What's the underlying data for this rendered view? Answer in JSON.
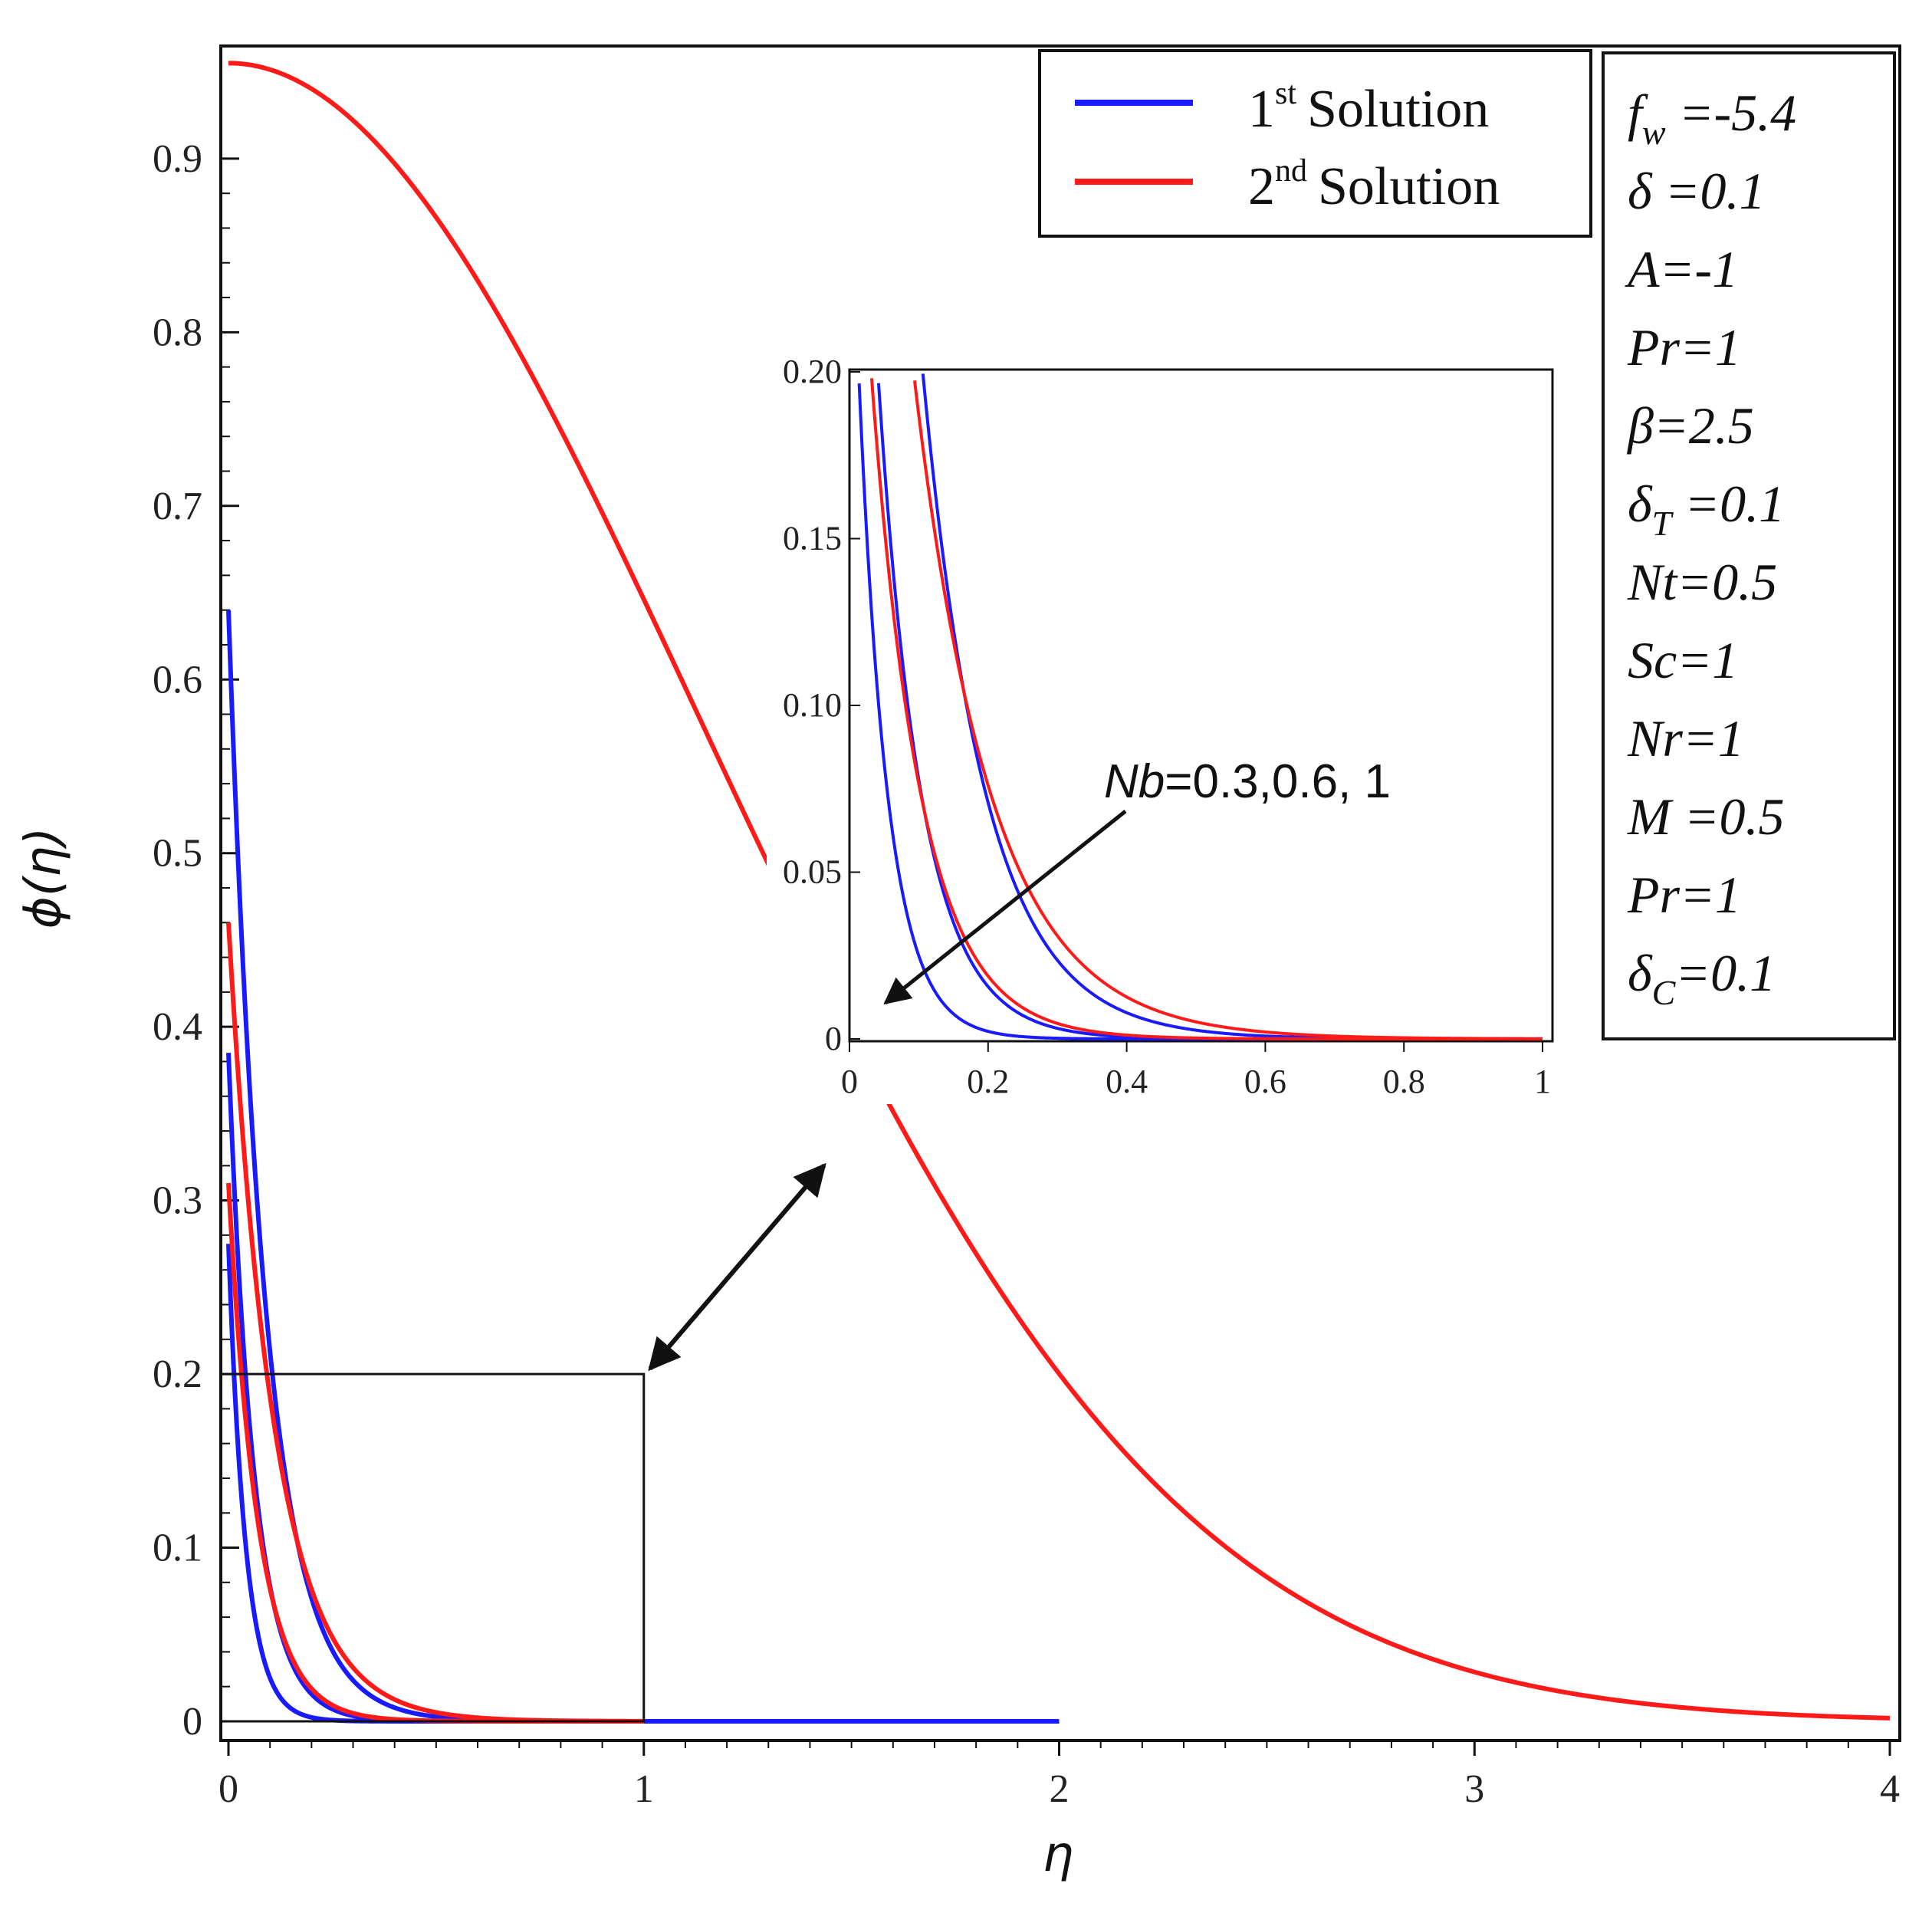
{
  "colors": {
    "first": "#1a1aff",
    "second": "#ff1a1a",
    "axis": "#111111"
  },
  "chart_data": {
    "type": "line",
    "xlabel": "η",
    "ylabel": "ϕ(η)",
    "xlim": [
      0,
      4
    ],
    "ylim": [
      0,
      0.96
    ],
    "x_ticks": [
      "0",
      "1",
      "2",
      "3",
      "4"
    ],
    "y_ticks": [
      "0",
      "0.1",
      "0.2",
      "0.3",
      "0.4",
      "0.5",
      "0.6",
      "0.7",
      "0.8",
      "0.9"
    ],
    "legend": {
      "first": {
        "base": "1",
        "sup": "st",
        "label": "Solution"
      },
      "second": {
        "base": "2",
        "sup": "nd",
        "label": "Solution"
      }
    },
    "series": [
      {
        "name": "1st Solution, Nb=0.3",
        "solution": "first",
        "x_end": 2,
        "y0": 0.64,
        "decay": 11,
        "shape": "exp"
      },
      {
        "name": "1st Solution, Nb=0.6",
        "solution": "first",
        "x_end": 2,
        "y0": 0.385,
        "decay": 16,
        "shape": "exp"
      },
      {
        "name": "1st Solution, Nb=1",
        "solution": "first",
        "x_end": 2,
        "y0": 0.275,
        "decay": 24,
        "shape": "exp"
      },
      {
        "name": "2nd Solution, Nb=0.3",
        "solution": "second",
        "x_end": 4,
        "y0": 0.955,
        "scale": 1.6,
        "shape": "bell"
      },
      {
        "name": "2nd Solution, Nb=0.6",
        "solution": "second",
        "x_end": 1,
        "y0": 0.46,
        "decay": 9,
        "shape": "exp"
      },
      {
        "name": "2nd Solution, Nb=1",
        "solution": "second",
        "x_end": 1,
        "y0": 0.31,
        "decay": 14,
        "shape": "exp"
      }
    ],
    "zoom_box": {
      "x": [
        0,
        1
      ],
      "y": [
        0,
        0.2
      ]
    },
    "inset": {
      "xlim": [
        0,
        1
      ],
      "ylim": [
        0,
        0.2
      ],
      "x_ticks": [
        "0",
        "0.2",
        "0.4",
        "0.6",
        "0.8",
        "1"
      ],
      "y_ticks": [
        "0",
        "0.05",
        "0.10",
        "0.15",
        "0.20"
      ],
      "annotation": {
        "italic": "Nb",
        "rest": "=0.3,0.6, 1"
      }
    },
    "parameters": [
      {
        "sym": "f",
        "sub": "w",
        "val": " =-5.4"
      },
      {
        "sym": "δ",
        "sub": "",
        "val": " =0.1"
      },
      {
        "sym": "A",
        "sub": "",
        "val": "=-1"
      },
      {
        "sym": "Pr",
        "sub": "",
        "val": "=1"
      },
      {
        "sym": "β",
        "sub": "",
        "val": "=2.5"
      },
      {
        "sym": "δ",
        "sub": "T",
        "val": " =0.1"
      },
      {
        "sym": "Nt",
        "sub": "",
        "val": "=0.5"
      },
      {
        "sym": "Sc",
        "sub": "",
        "val": "=1"
      },
      {
        "sym": "Nr",
        "sub": "",
        "val": "=1"
      },
      {
        "sym": "M",
        "sub": "",
        "val": " =0.5"
      },
      {
        "sym": "Pr",
        "sub": "",
        "val": "=1"
      },
      {
        "sym": "δ",
        "sub": "C",
        "val": "=0.1"
      }
    ]
  }
}
